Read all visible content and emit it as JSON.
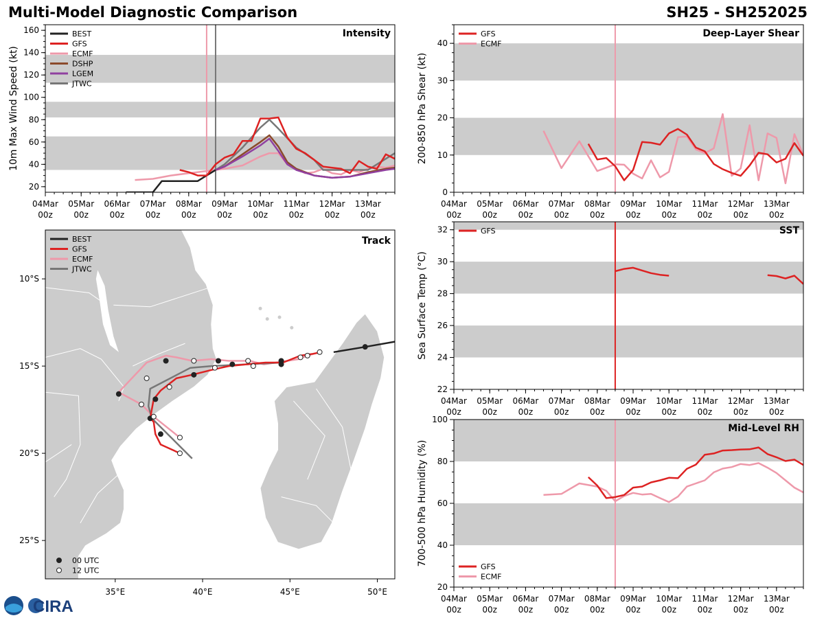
{
  "header": {
    "title": "Multi-Model Diagnostic Comparison",
    "storm_id": "SH25 - SH252025"
  },
  "logo": {
    "text": "CIRA"
  },
  "colors": {
    "BEST": "#222222",
    "GFS": "#dd2222",
    "ECMF": "#ee99aa",
    "DSHP": "#8b4a2b",
    "LGEM": "#9040a0",
    "JTWC": "#777777",
    "band": "#cccccc"
  },
  "time_ticks": [
    {
      "top": "04Mar",
      "bottom": "00z"
    },
    {
      "top": "05Mar",
      "bottom": "00z"
    },
    {
      "top": "06Mar",
      "bottom": "00z"
    },
    {
      "top": "07Mar",
      "bottom": "00z"
    },
    {
      "top": "08Mar",
      "bottom": "00z"
    },
    {
      "top": "09Mar",
      "bottom": "00z"
    },
    {
      "top": "10Mar",
      "bottom": "00z"
    },
    {
      "top": "11Mar",
      "bottom": "00z"
    },
    {
      "top": "12Mar",
      "bottom": "00z"
    },
    {
      "top": "13Mar",
      "bottom": "00z"
    }
  ],
  "chart_data": [
    {
      "id": "intensity",
      "type": "line",
      "title": "Intensity",
      "ylabel": "10m Max Wind Speed (kt)",
      "x_unit": "days since 04Mar 00z",
      "xlim": [
        0,
        9.75
      ],
      "ylim": [
        15,
        165
      ],
      "yticks": [
        20,
        40,
        60,
        80,
        100,
        120,
        140,
        160
      ],
      "bands": [
        [
          35,
          65
        ],
        [
          82,
          96
        ],
        [
          113,
          138
        ]
      ],
      "vlines": [
        {
          "x": 4.5,
          "model": "ECMF"
        },
        {
          "x": 4.75,
          "model": "JTWC"
        }
      ],
      "legend": [
        "BEST",
        "GFS",
        "ECMF",
        "DSHP",
        "LGEM",
        "JTWC"
      ],
      "series": [
        {
          "name": "BEST",
          "x": [
            2.25,
            2.5,
            2.75,
            3.0,
            3.25,
            3.5,
            3.75,
            4.0,
            4.25,
            4.5,
            4.75
          ],
          "y": [
            15,
            15,
            15,
            15,
            25,
            25,
            25,
            25,
            25,
            30,
            35
          ]
        },
        {
          "name": "GFS",
          "x": [
            3.75,
            4.0,
            4.25,
            4.5,
            4.75,
            5.0,
            5.25,
            5.5,
            5.75,
            6.0,
            6.25,
            6.5,
            6.75,
            7.0,
            7.25,
            7.5,
            7.75,
            8.0,
            8.25,
            8.5,
            8.75,
            9.0,
            9.25,
            9.5,
            9.75
          ],
          "y": [
            35,
            33,
            30,
            30,
            40,
            46,
            49,
            61,
            61,
            81,
            81,
            82,
            64,
            54,
            50,
            44,
            38,
            37,
            36,
            32,
            43,
            38,
            36,
            49,
            45
          ]
        },
        {
          "name": "ECMF",
          "x": [
            2.5,
            3.0,
            3.5,
            4.0,
            4.5,
            5.0,
            5.5,
            6.0,
            6.25,
            6.5,
            6.75,
            7.0,
            7.25,
            7.5,
            7.75,
            8.0,
            8.25,
            8.5,
            8.75,
            9.0,
            9.25,
            9.5,
            9.75
          ],
          "y": [
            26,
            27,
            30,
            32,
            34,
            36,
            39,
            47,
            50,
            50,
            40,
            36,
            32,
            33,
            36,
            32,
            31,
            35,
            33,
            36,
            38,
            37,
            39
          ]
        },
        {
          "name": "DSHP",
          "x": [
            4.75,
            5.0,
            5.5,
            6.0,
            6.25,
            6.5,
            6.75,
            7.0,
            7.5,
            8.0,
            8.5,
            9.0,
            9.5,
            9.75
          ],
          "y": [
            35,
            38,
            49,
            60,
            66,
            56,
            42,
            36,
            30,
            28,
            29,
            33,
            36,
            37
          ]
        },
        {
          "name": "LGEM",
          "x": [
            4.75,
            5.0,
            5.5,
            6.0,
            6.25,
            6.5,
            6.75,
            7.0,
            7.5,
            8.0,
            8.5,
            9.0,
            9.5,
            9.75
          ],
          "y": [
            35,
            38,
            47,
            57,
            63,
            52,
            40,
            35,
            30,
            28,
            29,
            32,
            35,
            36
          ]
        },
        {
          "name": "JTWC",
          "x": [
            4.75,
            5.0,
            5.5,
            6.0,
            6.25,
            6.5,
            7.0,
            7.5,
            7.75,
            8.0,
            8.5,
            9.0,
            9.5,
            9.75
          ],
          "y": [
            35,
            40,
            55,
            73,
            80,
            72,
            55,
            44,
            35,
            35,
            35,
            35,
            45,
            50
          ]
        }
      ]
    },
    {
      "id": "shear",
      "type": "line",
      "title": "Deep-Layer Shear",
      "ylabel": "200-850 hPa Shear (kt)",
      "x_unit": "days since 04Mar 00z",
      "xlim": [
        0,
        9.75
      ],
      "ylim": [
        0,
        45
      ],
      "yticks": [
        0,
        10,
        20,
        30,
        40
      ],
      "bands": [
        [
          10,
          20
        ],
        [
          30,
          40
        ]
      ],
      "vlines": [
        {
          "x": 4.5,
          "model": "ECMF"
        }
      ],
      "legend": [
        "GFS",
        "ECMF"
      ],
      "series": [
        {
          "name": "GFS",
          "x": [
            3.75,
            4.0,
            4.25,
            4.5,
            4.75,
            5.0,
            5.25,
            5.5,
            5.75,
            6.0,
            6.25,
            6.5,
            6.75,
            7.0,
            7.25,
            7.5,
            7.75,
            8.0,
            8.25,
            8.5,
            8.75,
            9.0,
            9.25,
            9.5,
            9.75
          ],
          "y": [
            13,
            8.8,
            9.2,
            7,
            3.2,
            6,
            13.5,
            13.3,
            12.8,
            15.8,
            17,
            15.5,
            12,
            11,
            7.6,
            6.2,
            5.2,
            4.4,
            7.2,
            10.6,
            10.2,
            8,
            9,
            13.2,
            9.8
          ]
        },
        {
          "name": "ECMF",
          "x": [
            2.5,
            3.0,
            3.5,
            4.0,
            4.5,
            4.75,
            5.0,
            5.25,
            5.5,
            5.75,
            6.0,
            6.25,
            6.5,
            6.75,
            7.0,
            7.25,
            7.5,
            7.75,
            8.0,
            8.25,
            8.5,
            8.75,
            9.0,
            9.25,
            9.5,
            9.75
          ],
          "y": [
            16.5,
            6.5,
            13.7,
            5.7,
            7.5,
            7.4,
            5,
            3.7,
            8.6,
            4,
            5.5,
            14.8,
            15,
            11.5,
            10.5,
            11.8,
            21,
            4.4,
            6.4,
            18,
            3.2,
            15.8,
            14.6,
            2.4,
            15.6,
            10
          ]
        }
      ]
    },
    {
      "id": "sst",
      "type": "line",
      "title": "SST",
      "ylabel": "Sea Surface Temp (°C)",
      "x_unit": "days since 04Mar 00z",
      "xlim": [
        0,
        9.75
      ],
      "ylim": [
        22,
        32.5
      ],
      "yticks": [
        22,
        24,
        26,
        28,
        30,
        32
      ],
      "bands": [
        [
          24,
          26
        ],
        [
          28,
          30
        ],
        [
          32,
          32.5
        ]
      ],
      "vlines": [
        {
          "x": 4.5,
          "model": "GFS"
        }
      ],
      "legend": [
        "GFS"
      ],
      "series": [
        {
          "name": "GFS",
          "x": [
            4.5,
            4.75,
            5.0,
            5.25,
            5.5,
            5.75,
            6.0
          ],
          "y": [
            29.4,
            29.55,
            29.62,
            29.45,
            29.28,
            29.18,
            29.12
          ]
        },
        {
          "name": "GFS",
          "x": [
            8.75,
            9.0,
            9.25,
            9.5,
            9.75
          ],
          "y": [
            29.15,
            29.1,
            28.95,
            29.12,
            28.6
          ]
        }
      ]
    },
    {
      "id": "rh",
      "type": "line",
      "title": "Mid-Level RH",
      "ylabel": "700-500 hPa Humidity (%)",
      "x_unit": "days since 04Mar 00z",
      "xlim": [
        0,
        9.75
      ],
      "ylim": [
        20,
        100
      ],
      "yticks": [
        20,
        40,
        60,
        80,
        100
      ],
      "bands": [
        [
          40,
          60
        ],
        [
          80,
          100
        ]
      ],
      "vlines": [
        {
          "x": 4.5,
          "model": "ECMF"
        }
      ],
      "legend": [
        "GFS",
        "ECMF"
      ],
      "legend_position": "bottom-left",
      "series": [
        {
          "name": "GFS",
          "x": [
            3.75,
            4.0,
            4.25,
            4.5,
            4.75,
            5.0,
            5.25,
            5.5,
            5.75,
            6.0,
            6.25,
            6.5,
            6.75,
            7.0,
            7.25,
            7.5,
            7.75,
            8.0,
            8.25,
            8.5,
            8.75,
            9.0,
            9.25,
            9.5,
            9.75
          ],
          "y": [
            72.5,
            68.5,
            62.5,
            63,
            64,
            67.5,
            68,
            70,
            71,
            72.2,
            72,
            76.5,
            78.5,
            83.2,
            83.8,
            85.2,
            85.4,
            85.7,
            85.8,
            86.7,
            83.5,
            82,
            80.2,
            80.9,
            78.3
          ]
        },
        {
          "name": "ECMF",
          "x": [
            2.5,
            3.0,
            3.5,
            4.0,
            4.25,
            4.5,
            4.75,
            5.0,
            5.25,
            5.5,
            5.75,
            6.0,
            6.25,
            6.5,
            6.75,
            7.0,
            7.25,
            7.5,
            7.75,
            8.0,
            8.25,
            8.5,
            8.75,
            9.0,
            9.25,
            9.5,
            9.75
          ],
          "y": [
            64,
            64.5,
            69.5,
            68,
            66,
            61,
            63.5,
            65,
            64.2,
            64.5,
            62.5,
            60.6,
            63.2,
            68,
            69.5,
            71,
            74.8,
            76.6,
            77.3,
            78.8,
            78.3,
            79.2,
            77,
            74.5,
            71,
            67.5,
            65.2
          ]
        }
      ]
    },
    {
      "id": "track",
      "type": "line",
      "title": "Track",
      "x_unit": "longitude deg E",
      "y_unit": "latitude deg",
      "xlim": [
        31,
        51
      ],
      "ylim": [
        -27.2,
        -7.2
      ],
      "xticks": [
        {
          "v": 35,
          "label": "35°E"
        },
        {
          "v": 40,
          "label": "40°E"
        },
        {
          "v": 45,
          "label": "45°E"
        },
        {
          "v": 50,
          "label": "50°E"
        }
      ],
      "yticks": [
        {
          "v": -10,
          "label": "10°S"
        },
        {
          "v": -15,
          "label": "15°S"
        },
        {
          "v": -20,
          "label": "20°S"
        },
        {
          "v": -25,
          "label": "25°S"
        }
      ],
      "legend": [
        "BEST",
        "GFS",
        "ECMF",
        "JTWC"
      ],
      "marker_legend": [
        {
          "style": "filled",
          "label": "00 UTC"
        },
        {
          "style": "open",
          "label": "12 UTC"
        }
      ],
      "series": [
        {
          "name": "BEST",
          "lon": [
            51,
            49.3,
            47.5,
            46.3,
            44.5,
            42.5,
            41.0,
            39.4,
            37.9,
            35.2,
            37.0,
            37.3
          ],
          "lat": [
            -13.6,
            -13.9,
            -14.2,
            -14.4,
            -14.9,
            -15.0,
            -14.8,
            -15.5,
            -14.8,
            -16.6,
            -18.0,
            -16.9
          ],
          "best_only_partial": true
        },
        {
          "name": "GFS",
          "lon": [
            46.8,
            46.3,
            45.6,
            44.6,
            43.6,
            42.5,
            41.5,
            40.6,
            39.4,
            38.5,
            37.6,
            37.2,
            37.0,
            37.2,
            37.3,
            37.6,
            38.7
          ],
          "lat": [
            -14.2,
            -14.3,
            -14.4,
            -14.8,
            -14.8,
            -14.9,
            -15.0,
            -15.2,
            -15.5,
            -15.7,
            -16.4,
            -16.9,
            -18.0,
            -18.2,
            -18.9,
            -19.5,
            -20.0
          ]
        },
        {
          "name": "ECMF",
          "lon": [
            46.7,
            46.0,
            45.5,
            44.2,
            43.5,
            42.7,
            41.5,
            40.5,
            39.4,
            38.5,
            37.9,
            36.8,
            35.2,
            36.5,
            37.2,
            38.7
          ],
          "lat": [
            -14.2,
            -14.4,
            -14.6,
            -14.8,
            -14.9,
            -14.7,
            -14.7,
            -14.6,
            -14.7,
            -14.5,
            -14.4,
            -14.8,
            -16.5,
            -17.2,
            -17.9,
            -19.1
          ]
        },
        {
          "name": "JTWC",
          "lon": [
            44.5,
            42.5,
            40.5,
            39.3,
            37.0,
            36.9,
            37.1,
            38.3,
            39.4
          ],
          "lat": [
            -14.8,
            -14.9,
            -15.0,
            -15.1,
            -16.3,
            -17.3,
            -18.0,
            -19.2,
            -20.3
          ]
        }
      ],
      "markers": [
        {
          "lon": 49.3,
          "lat": -13.9,
          "style": "filled"
        },
        {
          "lon": 46.7,
          "lat": -14.2,
          "style": "open"
        },
        {
          "lon": 46.0,
          "lat": -14.4,
          "style": "open"
        },
        {
          "lon": 45.6,
          "lat": -14.5,
          "style": "open"
        },
        {
          "lon": 44.5,
          "lat": -14.9,
          "style": "filled"
        },
        {
          "lon": 44.5,
          "lat": -14.7,
          "style": "filled"
        },
        {
          "lon": 42.9,
          "lat": -15.0,
          "style": "open"
        },
        {
          "lon": 42.6,
          "lat": -14.7,
          "style": "open"
        },
        {
          "lon": 41.7,
          "lat": -14.9,
          "style": "filled"
        },
        {
          "lon": 40.9,
          "lat": -14.7,
          "style": "filled"
        },
        {
          "lon": 40.7,
          "lat": -15.1,
          "style": "open"
        },
        {
          "lon": 39.5,
          "lat": -14.7,
          "style": "open"
        },
        {
          "lon": 39.5,
          "lat": -15.5,
          "style": "filled"
        },
        {
          "lon": 37.9,
          "lat": -14.7,
          "style": "filled"
        },
        {
          "lon": 38.1,
          "lat": -16.2,
          "style": "open"
        },
        {
          "lon": 36.8,
          "lat": -15.7,
          "style": "open"
        },
        {
          "lon": 35.2,
          "lat": -16.6,
          "style": "filled"
        },
        {
          "lon": 36.5,
          "lat": -17.2,
          "style": "open"
        },
        {
          "lon": 37.3,
          "lat": -16.9,
          "style": "filled"
        },
        {
          "lon": 37.0,
          "lat": -18.0,
          "style": "filled"
        },
        {
          "lon": 37.2,
          "lat": -17.9,
          "style": "open"
        },
        {
          "lon": 37.6,
          "lat": -18.9,
          "style": "filled"
        },
        {
          "lon": 38.7,
          "lat": -19.1,
          "style": "open"
        },
        {
          "lon": 38.7,
          "lat": -20.0,
          "style": "open"
        }
      ]
    }
  ]
}
